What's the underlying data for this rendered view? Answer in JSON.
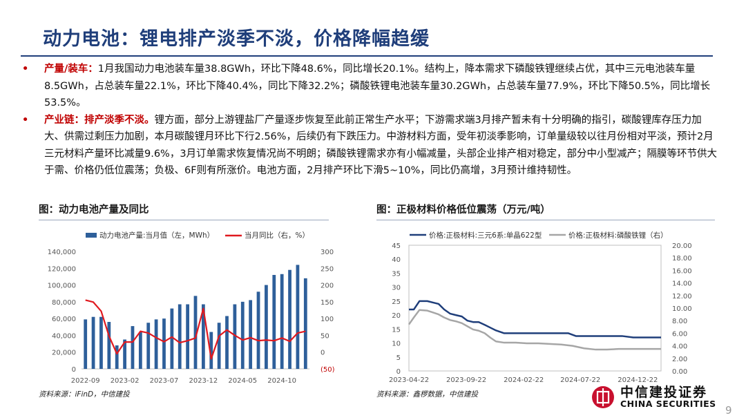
{
  "title": "动力电池：锂电排产淡季不淡，价格降幅趋缓",
  "bullets": [
    {
      "lead": "产量/装车：",
      "text": "1月我国动力电池装车量38.8GWh，环比下降48.6%，同比增长20.1%。结构上，降本需求下磷酸铁锂继续占优，其中三元电池装车量8.5GWh，占总装车量22.1%，环比下降40.4%，同比下降32.2%；磷酸铁锂电池装车量30.2GWh，占总装车量77.9%，环比下降50.5%，同比增长53.5%。"
    },
    {
      "lead": "产业链：排产淡季不淡。",
      "text": "锂方面，部分上游锂盐厂产量逐步恢复至此前正常生产水平；下游需求端3月排产暂未有十分明确的指引，碳酸锂库存压力加大、供需过剩压力加剧，本月碳酸锂月环比下行2.56%，后续仍有下跌压力。中游材料方面，受年初淡季影响，订单量级较以往月份相对平淡，预计2月三元材料产量环比减量9.6%，3月订单需求恢复情况尚不明朗；磷酸铁锂需求亦有小幅减量，头部企业排产相对稳定，部分中小型减产；隔膜等环节供大于需、价格仍低位震荡；负极、6F则有所涨价。电池方面，2月排产环比下滑5~10%，同比仍高增，3月预计维持韧性。"
    }
  ],
  "fig_left_title": "图：动力电池产量及同比",
  "fig_right_title": "图：正极材料价格低位震荡（万元/吨）",
  "source_left": "资料来源：iFinD，中信建投",
  "source_right": "资料来源：鑫椤数据，中信建投",
  "logo": {
    "cn": "中信建投证券",
    "en": "CHINA SECURITIES"
  },
  "page_number": "9",
  "colors": {
    "title": "#1f3e7a",
    "accent": "#c00000",
    "bar": "#2e5f9a",
    "line_red": "#e0191f",
    "line_navy": "#1f3e7a",
    "line_gray": "#a6a6a6"
  },
  "chart_data": [
    {
      "type": "bar",
      "legend": [
        "动力电池产量:当月值（左，MWh）",
        "当月同比（右，%）"
      ],
      "categories": [
        "2022-09",
        "2022-10",
        "2022-11",
        "2022-12",
        "2023-01",
        "2023-02",
        "2023-03",
        "2023-04",
        "2023-05",
        "2023-06",
        "2023-07",
        "2023-08",
        "2023-09",
        "2023-10",
        "2023-11",
        "2023-12",
        "2024-01",
        "2024-02",
        "2024-03",
        "2024-04",
        "2024-05",
        "2024-06",
        "2024-07",
        "2024-08",
        "2024-09",
        "2024-10",
        "2024-11",
        "2024-12",
        "2025-01"
      ],
      "x_tick_labels": [
        "2022-09",
        "2023-02",
        "2023-07",
        "2023-12",
        "2024-05",
        "2024-10"
      ],
      "x_tick_index": [
        0,
        5,
        10,
        15,
        20,
        25
      ],
      "series": [
        {
          "name": "动力电池产量:当月值（左，MWh）",
          "axis": "left",
          "type": "bar",
          "values": [
            59000,
            62000,
            62000,
            56000,
            28000,
            35000,
            51000,
            44000,
            55000,
            59000,
            60000,
            72000,
            77000,
            77000,
            87000,
            77000,
            44000,
            55000,
            63000,
            77000,
            80000,
            82000,
            92000,
            100000,
            112000,
            113000,
            118000,
            124000,
            108000
          ]
        },
        {
          "name": "当月同比（右，%）",
          "axis": "right",
          "type": "line",
          "values": [
            155,
            149,
            122,
            48,
            -5,
            30,
            30,
            62,
            57,
            43,
            31,
            45,
            28,
            34,
            42,
            130,
            -20,
            48,
            66,
            50,
            36,
            43,
            34,
            36,
            34,
            42,
            32,
            57,
            62
          ]
        }
      ],
      "y_left": {
        "ticks": [
          "0",
          "20,000",
          "40,000",
          "60,000",
          "80,000",
          "100,000",
          "120,000",
          "140,000"
        ],
        "min": 0,
        "max": 140000
      },
      "y_right": {
        "ticks": [
          "(50)",
          "0",
          "50",
          "100",
          "150",
          "200",
          "250",
          "300"
        ],
        "min": -50,
        "max": 300
      }
    },
    {
      "type": "line",
      "legend": [
        "价格:正极材料:三元6系:单晶622型",
        "价格:正极材料:磷酸铁锂（右）"
      ],
      "x_tick_labels": [
        "2023-04-22",
        "2023-09-22",
        "2024-02-22",
        "2024-07-22",
        "2024-12-22"
      ],
      "x_range": [
        "2023-04-22",
        "2025-02-22"
      ],
      "series": [
        {
          "name": "价格:正极材料:三元6系:单晶622型",
          "axis": "left",
          "x": [
            "2023-04-22",
            "2023-05-05",
            "2023-05-20",
            "2023-06-10",
            "2023-06-25",
            "2023-07-10",
            "2023-07-25",
            "2023-08-10",
            "2023-08-25",
            "2023-09-10",
            "2023-09-25",
            "2023-10-10",
            "2023-10-25",
            "2023-11-10",
            "2023-11-25",
            "2023-12-10",
            "2024-01-01",
            "2024-02-01",
            "2024-03-01",
            "2024-04-01",
            "2024-05-01",
            "2024-06-01",
            "2024-06-20",
            "2024-07-10",
            "2024-08-10",
            "2024-09-10",
            "2024-10-10",
            "2024-11-10",
            "2024-12-10",
            "2025-01-10",
            "2025-02-22"
          ],
          "y": [
            22,
            22,
            25,
            25,
            24.5,
            24,
            22,
            20.5,
            20,
            19.5,
            18,
            17.5,
            17.5,
            16.5,
            15.5,
            14.5,
            13.5,
            13.5,
            13.5,
            13.5,
            13.5,
            13.5,
            13.5,
            12.5,
            12.5,
            12.5,
            12.5,
            12.5,
            12,
            12,
            12
          ]
        },
        {
          "name": "价格:正极材料:磷酸铁锂（右）",
          "axis": "right",
          "x": [
            "2023-04-22",
            "2023-05-05",
            "2023-05-20",
            "2023-06-10",
            "2023-06-25",
            "2023-07-10",
            "2023-07-25",
            "2023-08-10",
            "2023-08-25",
            "2023-09-10",
            "2023-09-25",
            "2023-10-10",
            "2023-10-25",
            "2023-11-10",
            "2023-11-25",
            "2023-12-10",
            "2024-01-01",
            "2024-02-01",
            "2024-03-01",
            "2024-04-01",
            "2024-05-01",
            "2024-06-01",
            "2024-07-01",
            "2024-08-01",
            "2024-09-01",
            "2024-10-01",
            "2024-11-01",
            "2024-12-01",
            "2025-01-01",
            "2025-02-22"
          ],
          "y": [
            7.4,
            8.5,
            9.7,
            9.6,
            9.3,
            9.0,
            8.5,
            8.1,
            7.9,
            7.6,
            7.1,
            6.6,
            6.4,
            6.0,
            5.3,
            4.7,
            4.5,
            4.5,
            4.4,
            4.4,
            4.3,
            4.2,
            4.0,
            3.6,
            3.4,
            3.4,
            3.5,
            3.5,
            3.5,
            3.5
          ]
        }
      ],
      "y_left": {
        "ticks": [
          "0",
          "5",
          "10",
          "15",
          "20",
          "25",
          "30",
          "35",
          "40",
          "45"
        ],
        "min": 0,
        "max": 45
      },
      "y_right": {
        "ticks": [
          "0.00",
          "2.00",
          "4.00",
          "6.00",
          "8.00",
          "10.00",
          "12.00",
          "14.00",
          "16.00",
          "18.00",
          "20.00"
        ],
        "min": 0,
        "max": 20
      }
    }
  ]
}
